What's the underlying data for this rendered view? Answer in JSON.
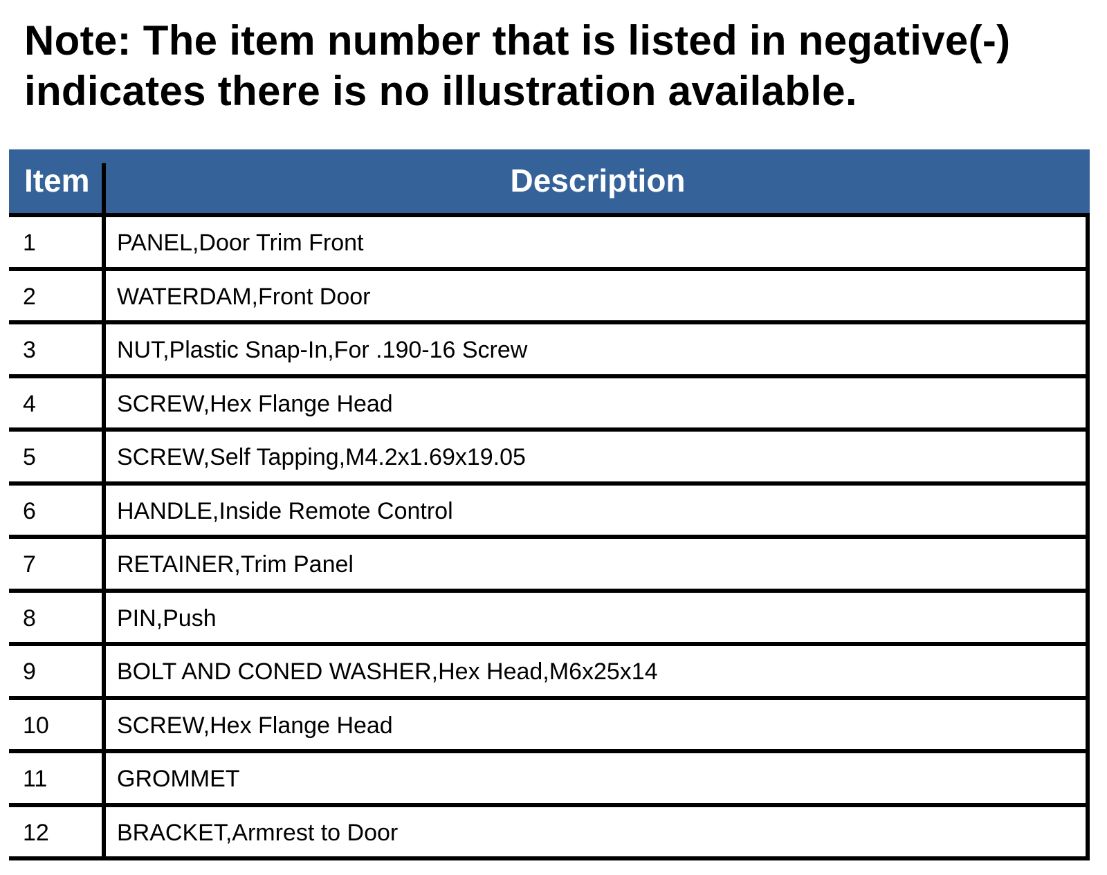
{
  "note": "Note: The item number that is listed in negative(-) indicates there is no illustration available.",
  "table": {
    "header_color": "#356399",
    "columns": [
      "Item",
      "Description"
    ],
    "rows": [
      {
        "item": "1",
        "description": "PANEL,Door Trim Front"
      },
      {
        "item": "2",
        "description": "WATERDAM,Front Door"
      },
      {
        "item": "3",
        "description": "NUT,Plastic Snap-In,For .190-16 Screw"
      },
      {
        "item": "4",
        "description": "SCREW,Hex Flange Head"
      },
      {
        "item": "5",
        "description": "SCREW,Self Tapping,M4.2x1.69x19.05"
      },
      {
        "item": "6",
        "description": "HANDLE,Inside Remote Control"
      },
      {
        "item": "7",
        "description": "RETAINER,Trim Panel"
      },
      {
        "item": "8",
        "description": "PIN,Push"
      },
      {
        "item": "9",
        "description": "BOLT AND CONED WASHER,Hex Head,M6x25x14"
      },
      {
        "item": "10",
        "description": "SCREW,Hex Flange Head"
      },
      {
        "item": "11",
        "description": "GROMMET"
      },
      {
        "item": "12",
        "description": "BRACKET,Armrest to Door"
      }
    ]
  }
}
